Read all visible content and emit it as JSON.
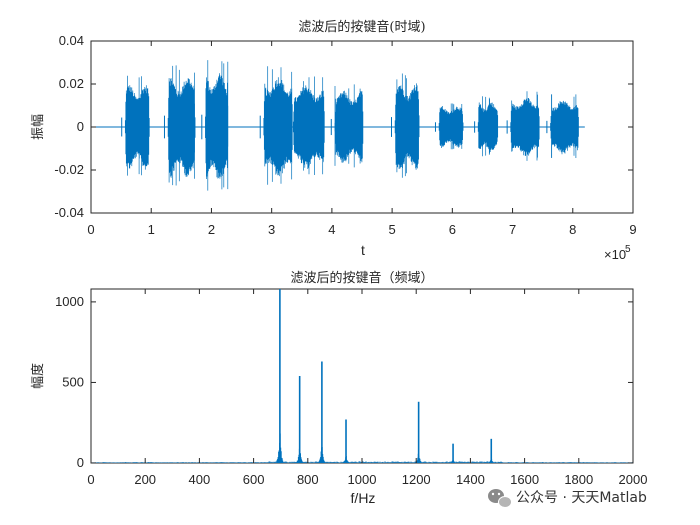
{
  "chart_data": [
    {
      "type": "line",
      "title": "滤波后的按键音(时域)",
      "xlabel": "t",
      "ylabel": "振幅",
      "xlim": [
        0,
        900000
      ],
      "ylim": [
        -0.04,
        0.04
      ],
      "x_ticks": [
        0,
        1,
        2,
        3,
        4,
        5,
        6,
        7,
        8,
        9
      ],
      "y_ticks": [
        "-0.04",
        "-0.02",
        "0",
        "0.02",
        "0.04"
      ],
      "x_exponent": {
        "base": "×10",
        "power": "5"
      },
      "color": "#0072BD",
      "segments": [
        {
          "start": 57000,
          "end": 97000,
          "amp": 0.02
        },
        {
          "start": 128000,
          "end": 173000,
          "amp": 0.024
        },
        {
          "start": 190000,
          "end": 228000,
          "amp": 0.026
        },
        {
          "start": 287000,
          "end": 335000,
          "amp": 0.024
        },
        {
          "start": 336000,
          "end": 388000,
          "amp": 0.02
        },
        {
          "start": 405000,
          "end": 452000,
          "amp": 0.017
        },
        {
          "start": 505000,
          "end": 545000,
          "amp": 0.021
        },
        {
          "start": 578000,
          "end": 618000,
          "amp": 0.01
        },
        {
          "start": 643000,
          "end": 676000,
          "amp": 0.012
        },
        {
          "start": 697000,
          "end": 745000,
          "amp": 0.014
        },
        {
          "start": 763000,
          "end": 810000,
          "amp": 0.013
        }
      ]
    },
    {
      "type": "line",
      "title": "滤波后的按键音（频域）",
      "xlabel": "f/Hz",
      "ylabel": "幅度",
      "xlim": [
        0,
        2000
      ],
      "ylim": [
        0,
        1080
      ],
      "x_ticks": [
        "0",
        "200",
        "400",
        "600",
        "800",
        "1000",
        "1200",
        "1400",
        "1600",
        "1800",
        "2000"
      ],
      "y_ticks": [
        "0",
        "500",
        "1000"
      ],
      "color": "#0072BD",
      "peaks": [
        {
          "x": 697,
          "y": 1080
        },
        {
          "x": 770,
          "y": 540
        },
        {
          "x": 852,
          "y": 630
        },
        {
          "x": 941,
          "y": 270
        },
        {
          "x": 1209,
          "y": 380
        },
        {
          "x": 1336,
          "y": 120
        },
        {
          "x": 1477,
          "y": 150
        }
      ]
    }
  ],
  "watermark": {
    "text": "公众号 · 天天Matlab",
    "icon": "wechat-icon"
  }
}
